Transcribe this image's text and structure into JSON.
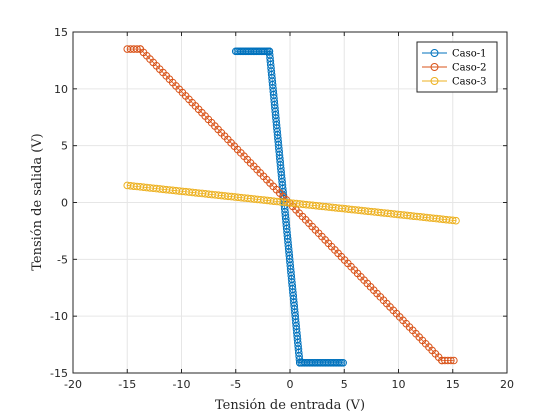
{
  "chart_data": {
    "type": "scatter",
    "title": "",
    "xlabel": "Tensión de entrada (V)",
    "ylabel": "Tensión de salida (V)",
    "xlim": [
      -20,
      20
    ],
    "ylim": [
      -15,
      15
    ],
    "xticks": [
      -20,
      -15,
      -10,
      -5,
      0,
      5,
      10,
      15,
      20
    ],
    "yticks": [
      -15,
      -10,
      -5,
      0,
      5,
      10,
      15
    ],
    "grid": true,
    "legend_position": "top-right",
    "marker": "circle",
    "series": [
      {
        "name": "Caso-1",
        "color": "#0072BD",
        "segments": [
          {
            "x_from": -5.0,
            "x_to": -1.9,
            "y_from": 13.3,
            "y_to": 13.3,
            "step": 0.15
          },
          {
            "x_from": -1.9,
            "x_to": 0.9,
            "y_from": 13.3,
            "y_to": -14.1,
            "step": 0.03
          },
          {
            "x_from": 0.9,
            "x_to": 4.9,
            "y_from": -14.1,
            "y_to": -14.1,
            "step": 0.15
          }
        ]
      },
      {
        "name": "Caso-2",
        "color": "#D95319",
        "segments": [
          {
            "x_from": -15.0,
            "x_to": -13.8,
            "y_from": 13.5,
            "y_to": 13.5,
            "step": 0.3
          },
          {
            "x_from": -13.8,
            "x_to": 14.0,
            "y_from": 13.5,
            "y_to": -13.9,
            "step": 0.3
          },
          {
            "x_from": 14.0,
            "x_to": 15.1,
            "y_from": -13.9,
            "y_to": -13.9,
            "step": 0.3
          }
        ]
      },
      {
        "name": "Caso-3",
        "color": "#EDB120",
        "segments": [
          {
            "x_from": -15.0,
            "x_to": 15.3,
            "y_from": 1.5,
            "y_to": -1.6,
            "step": 0.3
          }
        ]
      }
    ]
  }
}
